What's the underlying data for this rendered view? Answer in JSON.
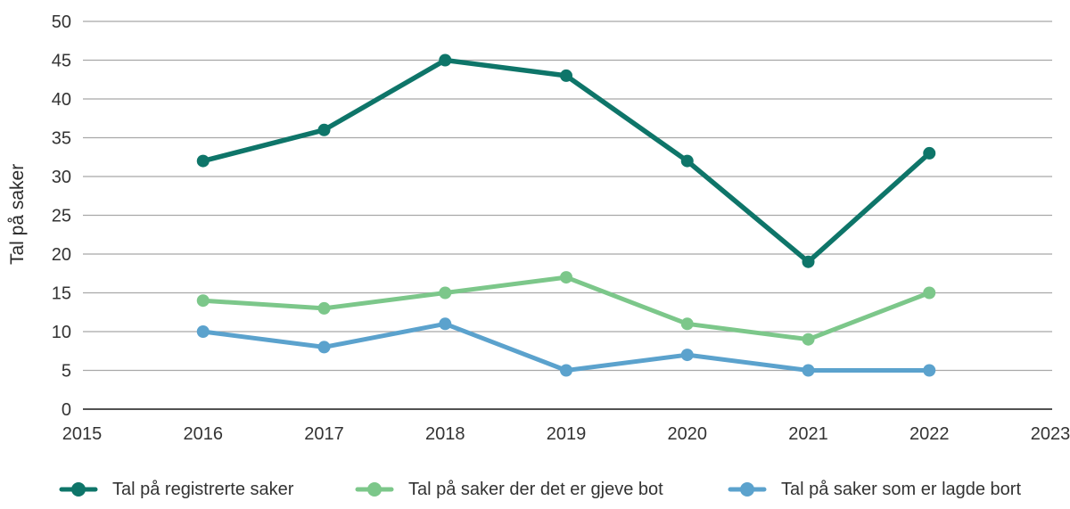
{
  "chart_data": {
    "type": "line",
    "title": "",
    "xlabel": "",
    "ylabel": "Tal på saker",
    "x": [
      2016,
      2017,
      2018,
      2019,
      2020,
      2021,
      2022
    ],
    "xticks": [
      2015,
      2016,
      2017,
      2018,
      2019,
      2020,
      2021,
      2022,
      2023
    ],
    "yticks": [
      0,
      5,
      10,
      15,
      20,
      25,
      30,
      35,
      40,
      45,
      50
    ],
    "xlim": [
      2015,
      2023
    ],
    "ylim": [
      0,
      50
    ],
    "grid": "horizontal",
    "legend_position": "bottom",
    "series": [
      {
        "name": "Tal på registrerte saker",
        "color": "#0e7569",
        "values": [
          32,
          36,
          45,
          43,
          32,
          19,
          33
        ]
      },
      {
        "name": "Tal på saker der det er gjeve bot",
        "color": "#7cc78a",
        "values": [
          14,
          13,
          15,
          17,
          11,
          9,
          15
        ]
      },
      {
        "name": "Tal på saker som er lagde bort",
        "color": "#5ba2cd",
        "values": [
          10,
          8,
          11,
          5,
          7,
          5,
          5
        ]
      }
    ],
    "colors": {
      "gridline": "#a8a8a8",
      "axis_line": "#3a3a3a",
      "tick_text": "#333333"
    }
  }
}
